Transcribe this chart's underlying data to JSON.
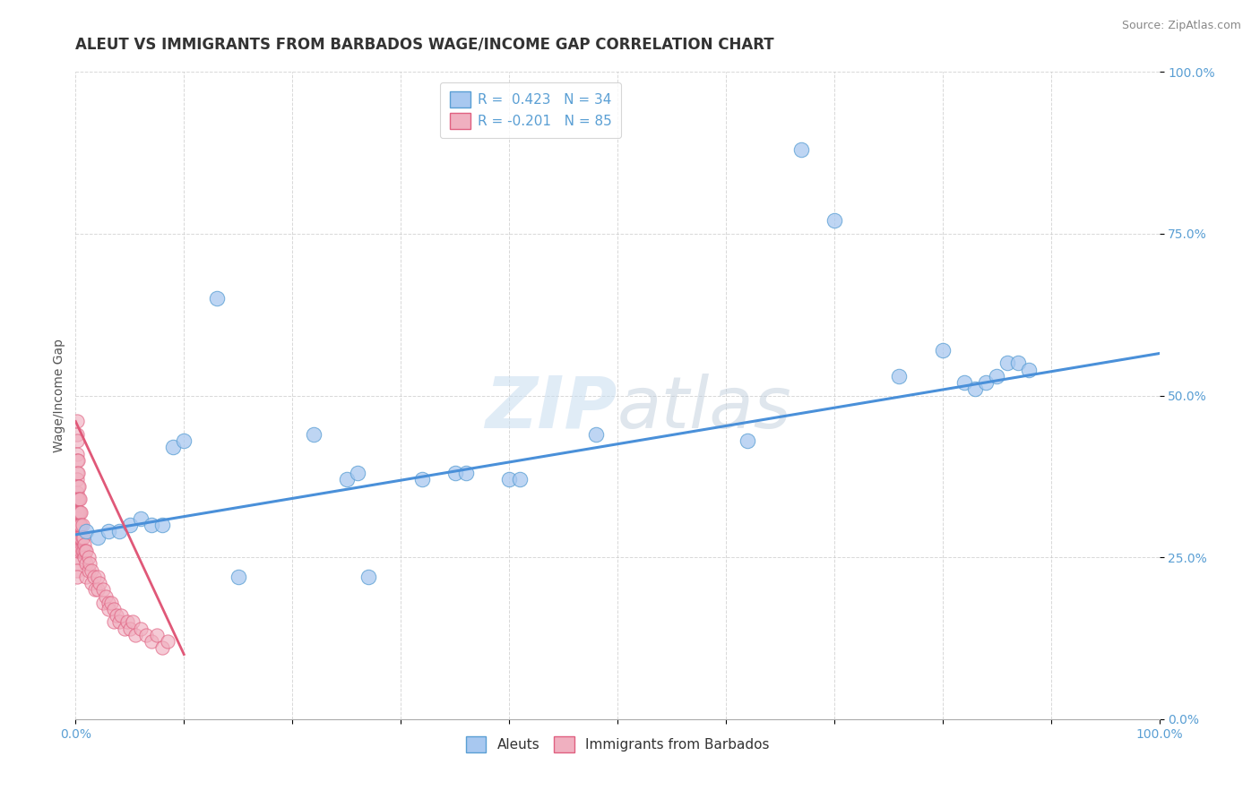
{
  "title": "ALEUT VS IMMIGRANTS FROM BARBADOS WAGE/INCOME GAP CORRELATION CHART",
  "source_text": "Source: ZipAtlas.com",
  "ylabel": "Wage/Income Gap",
  "watermark": "ZIPatlas",
  "legend_entries": [
    "Aleuts",
    "Immigrants from Barbados"
  ],
  "aleut_color": "#a8c8f0",
  "barbados_color": "#f0b0c0",
  "aleut_edge_color": "#5a9fd4",
  "barbados_edge_color": "#e06080",
  "aleut_line_color": "#4a90d9",
  "barbados_line_color": "#e05878",
  "background_color": "#ffffff",
  "grid_color": "#c8c8c8",
  "tick_label_color": "#5a9fd4",
  "xlim": [
    0,
    1
  ],
  "ylim": [
    0,
    1
  ],
  "ytick_positions": [
    0,
    0.25,
    0.5,
    0.75,
    1.0
  ],
  "ytick_labels": [
    "0.0%",
    "25.0%",
    "50.0%",
    "75.0%",
    "100.0%"
  ],
  "xtick_positions": [
    0,
    0.1,
    0.2,
    0.3,
    0.4,
    0.5,
    0.6,
    0.7,
    0.8,
    0.9,
    1.0
  ],
  "aleut_x": [
    0.01,
    0.02,
    0.03,
    0.04,
    0.05,
    0.06,
    0.07,
    0.08,
    0.09,
    0.1,
    0.13,
    0.22,
    0.27,
    0.35,
    0.36,
    0.4,
    0.41,
    0.48,
    0.62,
    0.67,
    0.7,
    0.76,
    0.8,
    0.82,
    0.83,
    0.84,
    0.85,
    0.86,
    0.87,
    0.88,
    0.25,
    0.26,
    0.15,
    0.32
  ],
  "aleut_y": [
    0.29,
    0.28,
    0.29,
    0.29,
    0.3,
    0.31,
    0.3,
    0.3,
    0.42,
    0.43,
    0.65,
    0.44,
    0.22,
    0.38,
    0.38,
    0.37,
    0.37,
    0.44,
    0.43,
    0.88,
    0.77,
    0.53,
    0.57,
    0.52,
    0.51,
    0.52,
    0.53,
    0.55,
    0.55,
    0.54,
    0.37,
    0.38,
    0.22,
    0.37
  ],
  "barbados_x": [
    0.001,
    0.001,
    0.001,
    0.001,
    0.001,
    0.001,
    0.001,
    0.001,
    0.001,
    0.001,
    0.001,
    0.001,
    0.001,
    0.001,
    0.001,
    0.001,
    0.001,
    0.001,
    0.001,
    0.001,
    0.002,
    0.002,
    0.002,
    0.002,
    0.002,
    0.002,
    0.002,
    0.002,
    0.002,
    0.003,
    0.003,
    0.003,
    0.003,
    0.003,
    0.004,
    0.004,
    0.004,
    0.004,
    0.005,
    0.005,
    0.005,
    0.005,
    0.006,
    0.006,
    0.006,
    0.007,
    0.007,
    0.008,
    0.008,
    0.009,
    0.01,
    0.01,
    0.01,
    0.012,
    0.012,
    0.013,
    0.015,
    0.015,
    0.017,
    0.018,
    0.02,
    0.02,
    0.022,
    0.025,
    0.025,
    0.028,
    0.03,
    0.03,
    0.033,
    0.035,
    0.035,
    0.038,
    0.04,
    0.042,
    0.045,
    0.048,
    0.05,
    0.053,
    0.055,
    0.06,
    0.065,
    0.07,
    0.075,
    0.08,
    0.085
  ],
  "barbados_y": [
    0.46,
    0.44,
    0.43,
    0.41,
    0.4,
    0.38,
    0.37,
    0.35,
    0.34,
    0.32,
    0.31,
    0.3,
    0.29,
    0.28,
    0.27,
    0.26,
    0.25,
    0.24,
    0.23,
    0.22,
    0.4,
    0.38,
    0.36,
    0.34,
    0.32,
    0.3,
    0.28,
    0.27,
    0.26,
    0.36,
    0.34,
    0.32,
    0.3,
    0.28,
    0.34,
    0.32,
    0.3,
    0.28,
    0.32,
    0.3,
    0.28,
    0.26,
    0.3,
    0.28,
    0.26,
    0.28,
    0.26,
    0.27,
    0.25,
    0.26,
    0.26,
    0.24,
    0.22,
    0.25,
    0.23,
    0.24,
    0.23,
    0.21,
    0.22,
    0.2,
    0.22,
    0.2,
    0.21,
    0.2,
    0.18,
    0.19,
    0.18,
    0.17,
    0.18,
    0.17,
    0.15,
    0.16,
    0.15,
    0.16,
    0.14,
    0.15,
    0.14,
    0.15,
    0.13,
    0.14,
    0.13,
    0.12,
    0.13,
    0.11,
    0.12
  ],
  "aleut_trend_x": [
    0.0,
    1.0
  ],
  "aleut_trend_y": [
    0.285,
    0.565
  ],
  "barbados_trend_x": [
    0.0,
    0.1
  ],
  "barbados_trend_y": [
    0.46,
    0.1
  ]
}
